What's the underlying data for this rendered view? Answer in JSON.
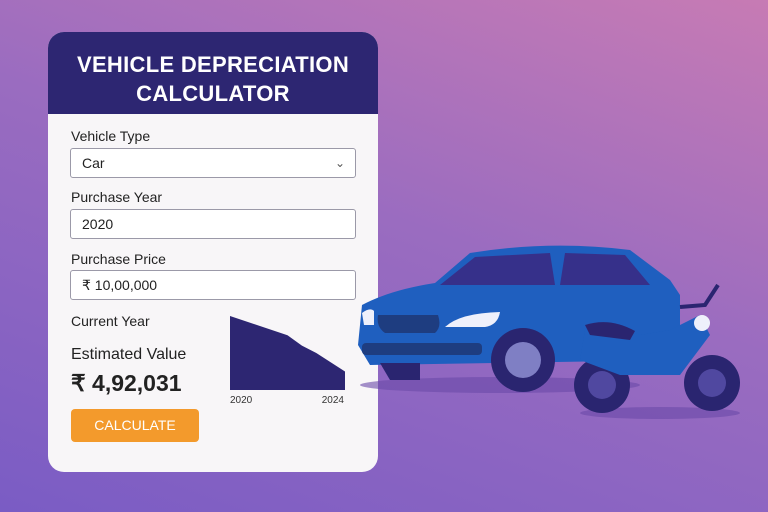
{
  "header": {
    "title_line1": "VEHICLE DEPRECIATION",
    "title_line2": "CALCULATOR"
  },
  "form": {
    "vehicle_type": {
      "label": "Vehicle Type",
      "value": "Car"
    },
    "purchase_year": {
      "label": "Purchase Year",
      "value": "2020"
    },
    "purchase_price": {
      "label": "Purchase Price",
      "value": "₹ 10,00,000"
    },
    "current_year": {
      "label": "Current Year"
    }
  },
  "result": {
    "label": "Estimated Value",
    "value": "₹ 4,92,031"
  },
  "calculate_label": "CALCULATE",
  "colors": {
    "header": "#2d2672",
    "button": "#f39a2c",
    "chart_fill": "#2d2672",
    "vehicle": "#1f5fbf"
  },
  "chart_data": {
    "type": "area",
    "x": [
      2020,
      2021,
      2022,
      2022.5,
      2023,
      2024
    ],
    "values": [
      1.0,
      0.87,
      0.74,
      0.6,
      0.5,
      0.25
    ],
    "tick_labels": [
      "2020",
      "2024"
    ],
    "xlim": [
      2020,
      2024
    ],
    "ylim": [
      0,
      1
    ],
    "grid": false
  }
}
